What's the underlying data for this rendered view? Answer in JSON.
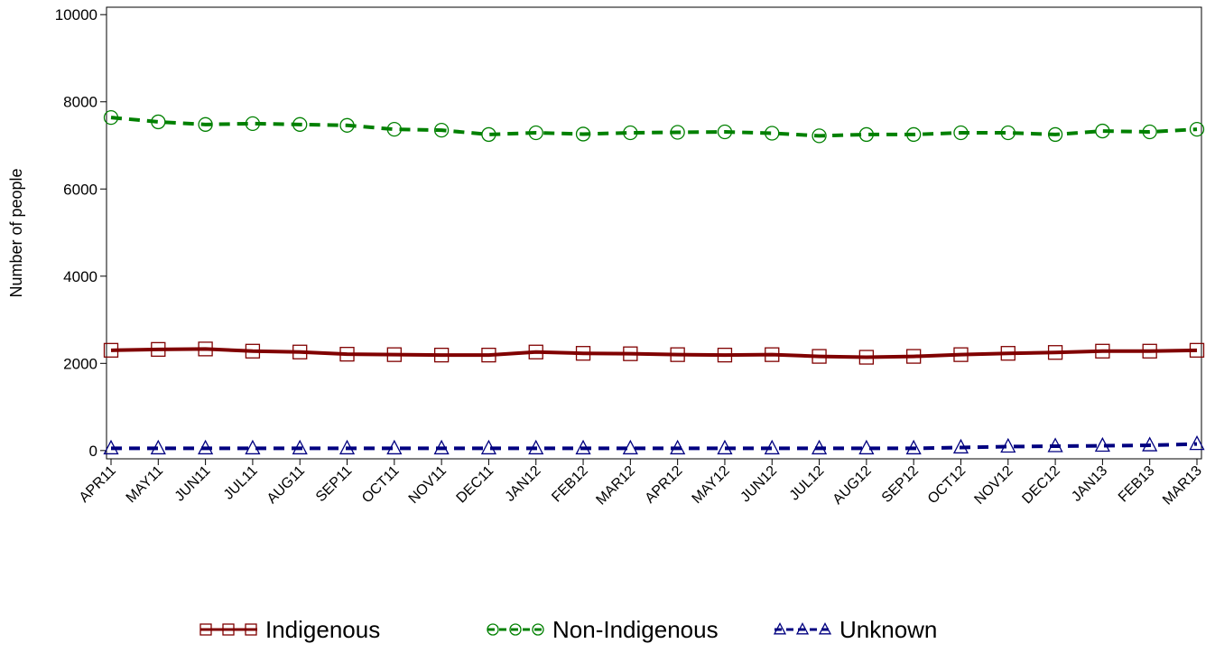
{
  "chart_data": {
    "type": "line",
    "y_label": "Number of people",
    "categories": [
      "APR11",
      "MAY11",
      "JUN11",
      "JUL11",
      "AUG11",
      "SEP11",
      "OCT11",
      "NOV11",
      "DEC11",
      "JAN12",
      "FEB12",
      "MAR12",
      "APR12",
      "MAY12",
      "JUN12",
      "JUL12",
      "AUG12",
      "SEP12",
      "OCT12",
      "NOV12",
      "DEC12",
      "JAN13",
      "FEB13",
      "MAR13"
    ],
    "series": [
      {
        "name": "Indigenous",
        "color": "#800000",
        "marker": "square",
        "dashed": false,
        "values": [
          2300,
          2320,
          2330,
          2280,
          2260,
          2210,
          2200,
          2190,
          2190,
          2260,
          2230,
          2220,
          2200,
          2190,
          2200,
          2160,
          2140,
          2160,
          2200,
          2230,
          2250,
          2280,
          2280,
          2300
        ]
      },
      {
        "name": "Non-Indigenous",
        "color": "#008000",
        "marker": "circle",
        "dashed": true,
        "values": [
          7640,
          7540,
          7480,
          7500,
          7480,
          7460,
          7370,
          7350,
          7250,
          7290,
          7260,
          7290,
          7300,
          7310,
          7280,
          7220,
          7250,
          7250,
          7290,
          7290,
          7250,
          7330,
          7310,
          7370
        ]
      },
      {
        "name": "Unknown",
        "color": "#000080",
        "marker": "triangle",
        "dashed": true,
        "values": [
          50,
          50,
          50,
          50,
          50,
          50,
          50,
          50,
          50,
          50,
          50,
          50,
          50,
          50,
          50,
          50,
          50,
          50,
          70,
          90,
          100,
          110,
          120,
          150
        ]
      }
    ],
    "ylim": [
      -190,
      10170
    ],
    "yticks": [
      0,
      2000,
      4000,
      6000,
      8000,
      10000
    ]
  }
}
